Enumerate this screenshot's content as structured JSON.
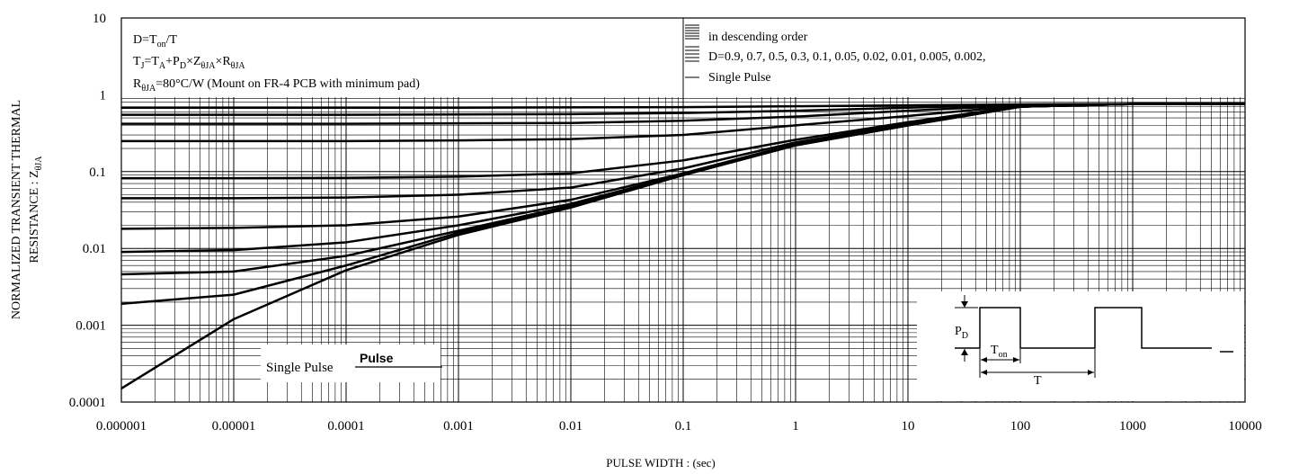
{
  "chart_data": {
    "type": "line",
    "xlabel": "PULSE WIDTH : (sec)",
    "ylabel": [
      [
        "NORMALIZED TRANSIENT THERMAL"
      ],
      [
        "RESISTANCE : Z",
        "θJA"
      ]
    ],
    "log_x": true,
    "log_y": true,
    "grid": true,
    "minor_grid": true,
    "xlim": [
      1e-06,
      10000
    ],
    "ylim": [
      0.0001,
      10
    ],
    "xticks": [
      1e-06,
      1e-05,
      0.0001,
      0.001,
      0.01,
      0.1,
      1,
      10,
      100,
      1000,
      10000
    ],
    "yticks": [
      0.0001,
      0.001,
      0.01,
      0.1,
      1,
      10
    ],
    "x": [
      1e-06,
      1e-05,
      0.0001,
      0.001,
      0.01,
      0.1,
      1,
      10,
      100,
      1000,
      10000
    ],
    "series": [
      {
        "color": "#000000",
        "values": [
          0.68,
          0.68,
          0.68,
          0.68,
          0.685,
          0.69,
          0.71,
          0.73,
          0.75,
          0.76,
          0.76
        ]
      },
      {
        "color": "#000000",
        "values": [
          0.55,
          0.55,
          0.55,
          0.555,
          0.56,
          0.58,
          0.62,
          0.68,
          0.74,
          0.76,
          0.76
        ]
      },
      {
        "color": "#000000",
        "values": [
          0.42,
          0.42,
          0.42,
          0.425,
          0.43,
          0.46,
          0.52,
          0.62,
          0.73,
          0.76,
          0.76
        ]
      },
      {
        "color": "#000000",
        "values": [
          0.25,
          0.25,
          0.25,
          0.255,
          0.265,
          0.3,
          0.4,
          0.53,
          0.72,
          0.76,
          0.76
        ]
      },
      {
        "color": "#000000",
        "values": [
          0.082,
          0.082,
          0.083,
          0.086,
          0.095,
          0.14,
          0.26,
          0.44,
          0.71,
          0.76,
          0.76
        ]
      },
      {
        "color": "#000000",
        "values": [
          0.045,
          0.045,
          0.046,
          0.05,
          0.062,
          0.11,
          0.24,
          0.42,
          0.7,
          0.76,
          0.76
        ]
      },
      {
        "color": "#000000",
        "values": [
          0.018,
          0.0185,
          0.02,
          0.026,
          0.043,
          0.095,
          0.23,
          0.41,
          0.7,
          0.76,
          0.76
        ]
      },
      {
        "color": "#000000",
        "values": [
          0.009,
          0.0095,
          0.012,
          0.02,
          0.038,
          0.092,
          0.225,
          0.4,
          0.7,
          0.76,
          0.76
        ]
      },
      {
        "color": "#000000",
        "values": [
          0.0046,
          0.005,
          0.008,
          0.017,
          0.036,
          0.091,
          0.22,
          0.4,
          0.7,
          0.76,
          0.76
        ]
      },
      {
        "color": "#000000",
        "values": [
          0.0019,
          0.0025,
          0.006,
          0.016,
          0.035,
          0.09,
          0.22,
          0.4,
          0.7,
          0.76,
          0.76
        ]
      },
      {
        "color": "#000000",
        "values": [
          0.00015,
          0.0012,
          0.0052,
          0.015,
          0.034,
          0.09,
          0.22,
          0.4,
          0.7,
          0.76,
          0.76
        ]
      }
    ],
    "annotation": [
      [
        "D=T",
        "on",
        "/T"
      ],
      [
        "T",
        "J",
        "=T",
        "A",
        "+P",
        "D",
        "×Z",
        "θJA",
        "×R",
        "θJA"
      ],
      [
        "R",
        "θJA",
        "=80°C/W (Mount on FR-4 PCB with minimum pad)"
      ]
    ],
    "legend_text": [
      "in descending order",
      "D=0.9, 0.7,  0.5, 0.3, 0.1, 0.05, 0.02, 0.01, 0.005, 0.002,",
      "Single Pulse"
    ],
    "curve_label": "Single Pulse",
    "curve_label_overlay": "Pulse",
    "inset": {
      "pd": [
        "P",
        "D"
      ],
      "ton": [
        "T",
        "on"
      ],
      "period": "T"
    }
  }
}
